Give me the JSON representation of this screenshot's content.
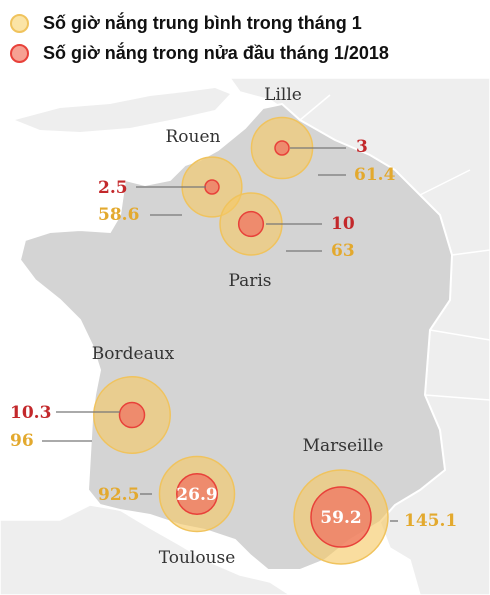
{
  "legend": {
    "average_label": "Số giờ nắng trung bình trong tháng 1",
    "current_label": "Số giờ nắng trong nửa đầu tháng 1/2018",
    "average_color": "#f0c35d",
    "current_color": "#e8413a"
  },
  "cities": [
    {
      "name": "Lille",
      "current": "3",
      "average": "61.4"
    },
    {
      "name": "Rouen",
      "current": "2.5",
      "average": "58.6"
    },
    {
      "name": "Paris",
      "current": "10",
      "average": "63"
    },
    {
      "name": "Bordeaux",
      "current": "10.3",
      "average": "96"
    },
    {
      "name": "Toulouse",
      "current": "26.9",
      "average": "92.5"
    },
    {
      "name": "Marseille",
      "current": "59.2",
      "average": "145.1"
    }
  ]
}
